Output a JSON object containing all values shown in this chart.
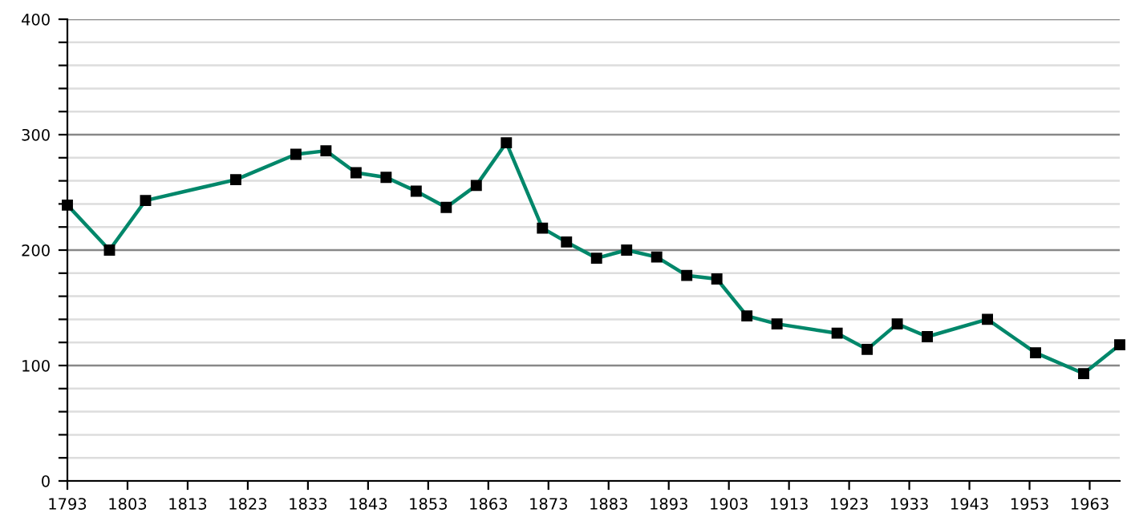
{
  "chart_data": {
    "type": "line",
    "x": [
      1793,
      1800,
      1806,
      1821,
      1831,
      1836,
      1841,
      1846,
      1851,
      1856,
      1861,
      1866,
      1872,
      1876,
      1881,
      1886,
      1891,
      1896,
      1901,
      1906,
      1911,
      1921,
      1926,
      1931,
      1936,
      1946,
      1954,
      1962,
      1968
    ],
    "series": [
      {
        "color": "#00876a",
        "values": [
          239,
          200,
          243,
          261,
          283,
          286,
          267,
          263,
          251,
          237,
          256,
          293,
          219,
          207,
          193,
          200,
          194,
          178,
          175,
          143,
          136,
          128,
          114,
          136,
          125,
          140,
          111,
          93,
          118
        ]
      }
    ],
    "xlim": [
      1793,
      1968
    ],
    "xticks": [
      1793,
      1803,
      1813,
      1823,
      1833,
      1843,
      1853,
      1863,
      1873,
      1883,
      1893,
      1903,
      1913,
      1923,
      1933,
      1943,
      1953,
      1963
    ],
    "ylim": [
      0,
      400
    ],
    "yticks": [
      0,
      {
        "value": 20,
        "label": null
      },
      {
        "value": 40,
        "label": null
      },
      {
        "value": 60,
        "label": null
      },
      {
        "value": 80,
        "label": null
      },
      100,
      {
        "value": 120,
        "label": null
      },
      {
        "value": 140,
        "label": null
      },
      {
        "value": 160,
        "label": null
      },
      {
        "value": 180,
        "label": null
      },
      200,
      {
        "value": 220,
        "label": null
      },
      {
        "value": 240,
        "label": null
      },
      {
        "value": 260,
        "label": null
      },
      {
        "value": 280,
        "label": null
      },
      300,
      {
        "value": 320,
        "label": null
      },
      {
        "value": 340,
        "label": null
      },
      {
        "value": 360,
        "label": null
      },
      {
        "value": 380,
        "label": null
      },
      400
    ],
    "grid": "y",
    "marker": "square",
    "line_style": "solid"
  }
}
